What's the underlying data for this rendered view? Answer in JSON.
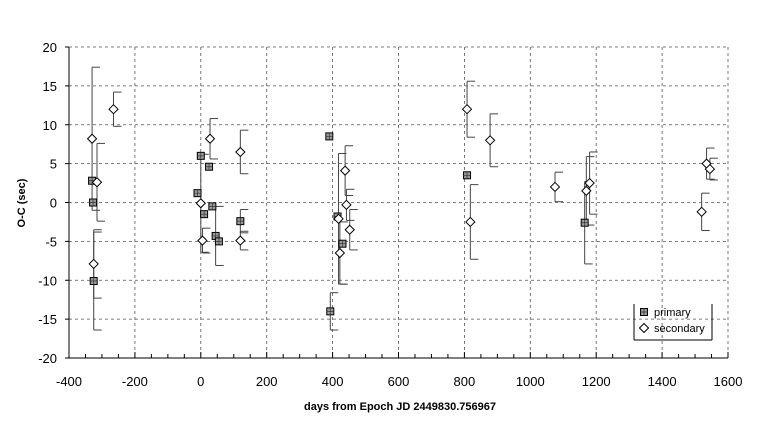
{
  "chart_data": {
    "type": "scatter",
    "title": "",
    "xlabel": "days from Epoch JD 2449830.756967",
    "ylabel": "O-C (sec)",
    "xlim": [
      -400,
      1600
    ],
    "ylim": [
      -20,
      20
    ],
    "x_ticks": [
      "-400",
      "-200",
      "0",
      "200",
      "400",
      "600",
      "800",
      "1000",
      "1200",
      "1400",
      "1600"
    ],
    "y_ticks": [
      "20",
      "15",
      "10",
      "5",
      "0",
      "-5",
      "-10",
      "-15",
      "-20"
    ],
    "x_tick_values": [
      -400,
      -200,
      0,
      200,
      400,
      600,
      800,
      1000,
      1200,
      1400,
      1600
    ],
    "y_tick_values": [
      20,
      15,
      10,
      5,
      0,
      -5,
      -10,
      -15,
      -20
    ],
    "grid": true,
    "legend_position": "bottom-right",
    "series": [
      {
        "name": "primary",
        "marker": "square",
        "points": [
          {
            "x": -330,
            "y": 2.8,
            "err": 0
          },
          {
            "x": -327,
            "y": 0.0,
            "err": 0
          },
          {
            "x": -325,
            "y": -10.1,
            "err": 6.3
          },
          {
            "x": -10,
            "y": 1.2,
            "err": 0
          },
          {
            "x": 0,
            "y": 6.0,
            "err": 0
          },
          {
            "x": 10,
            "y": -1.5,
            "err": 0
          },
          {
            "x": 25,
            "y": 4.6,
            "err": 0
          },
          {
            "x": 35,
            "y": -0.5,
            "err": 0
          },
          {
            "x": 45,
            "y": -4.3,
            "err": 3.8
          },
          {
            "x": 55,
            "y": -5.0,
            "err": 0
          },
          {
            "x": 120,
            "y": -2.4,
            "err": 1.5
          },
          {
            "x": 390,
            "y": 8.5,
            "err": 0
          },
          {
            "x": 393,
            "y": -14.0,
            "err": 2.4
          },
          {
            "x": 415,
            "y": -1.8,
            "err": 0
          },
          {
            "x": 430,
            "y": -5.3,
            "err": 0
          },
          {
            "x": 808,
            "y": 3.5,
            "err": 0
          },
          {
            "x": 1165,
            "y": -2.6,
            "err": 5.3
          }
        ]
      },
      {
        "name": "secondary",
        "marker": "diamond",
        "points": [
          {
            "x": -330,
            "y": 8.2,
            "err": 9.2
          },
          {
            "x": -325,
            "y": -7.9,
            "err": 4.4
          },
          {
            "x": -315,
            "y": 2.6,
            "err": 5.0
          },
          {
            "x": -265,
            "y": 12.0,
            "err": 2.2
          },
          {
            "x": 0,
            "y": -0.1,
            "err": 6.3
          },
          {
            "x": 5,
            "y": -4.9,
            "err": 1.6
          },
          {
            "x": 28,
            "y": 8.2,
            "err": 2.6
          },
          {
            "x": 120,
            "y": 6.5,
            "err": 2.8
          },
          {
            "x": 120,
            "y": -4.9,
            "err": 1.2
          },
          {
            "x": 418,
            "y": -2.1,
            "err": 8.4
          },
          {
            "x": 422,
            "y": -6.5,
            "err": 4.0
          },
          {
            "x": 438,
            "y": 4.1,
            "err": 3.2
          },
          {
            "x": 442,
            "y": -0.3,
            "err": 2.0
          },
          {
            "x": 452,
            "y": -3.5,
            "err": 2.6
          },
          {
            "x": 808,
            "y": 12.0,
            "err": 3.6
          },
          {
            "x": 818,
            "y": -2.5,
            "err": 4.8
          },
          {
            "x": 878,
            "y": 8.0,
            "err": 3.4
          },
          {
            "x": 1075,
            "y": 2.0,
            "err": 1.9
          },
          {
            "x": 1170,
            "y": 1.5,
            "err": 4.4
          },
          {
            "x": 1180,
            "y": 2.5,
            "err": 4.0
          },
          {
            "x": 1520,
            "y": -1.2,
            "err": 2.4
          },
          {
            "x": 1535,
            "y": 5.0,
            "err": 2.0
          },
          {
            "x": 1545,
            "y": 4.3,
            "err": 1.4
          }
        ]
      }
    ]
  }
}
